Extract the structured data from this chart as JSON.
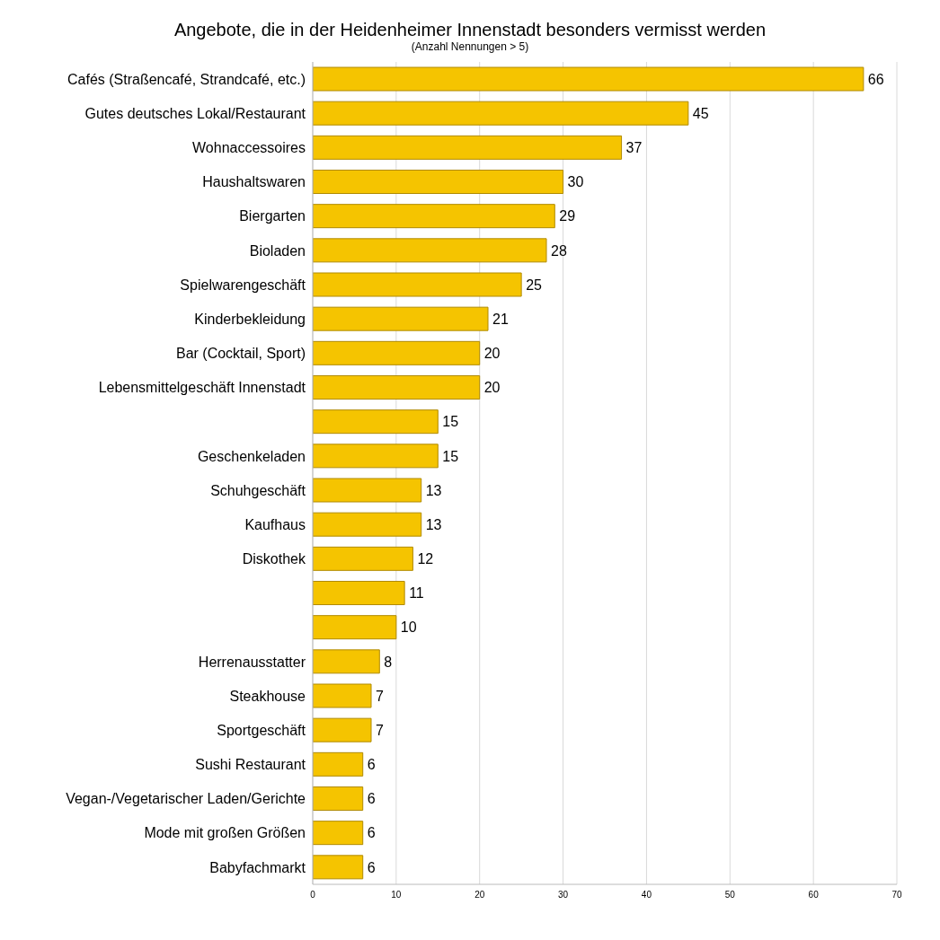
{
  "chart_data": {
    "type": "bar",
    "orientation": "horizontal",
    "title": "Angebote, die in der Heidenheimer Innenstadt besonders vermisst werden",
    "subtitle": "(Anzahl Nennungen > 5)",
    "categories": [
      "Cafés (Straßencafé, Strandcafé, etc.)",
      "Gutes deutsches Lokal/Restaurant",
      "Wohnaccessoires",
      "Haushaltswaren",
      "Biergarten",
      "Bioladen",
      "Spielwarengeschäft",
      "Kinderbekleidung",
      "Bar (Cocktail, Sport)",
      "Lebensmittelgeschäft Innenstadt",
      null,
      "Geschenkeladen",
      "Schuhgeschäft",
      "Kaufhaus",
      "Diskothek",
      null,
      null,
      "Herrenausstatter",
      "Steakhouse",
      "Sportgeschäft",
      "Sushi Restaurant",
      "Vegan-/Vegetarischer Laden/Gerichte",
      "Mode mit großen Größen",
      "Babyfachmarkt"
    ],
    "values": [
      66,
      45,
      37,
      30,
      29,
      28,
      25,
      21,
      20,
      20,
      15,
      15,
      13,
      13,
      12,
      11,
      10,
      8,
      7,
      7,
      6,
      6,
      6,
      6
    ],
    "color": "#f5c400",
    "xlim": [
      0,
      70
    ],
    "xticks": [
      0,
      10,
      20,
      30,
      40,
      50,
      60,
      70
    ],
    "grid": "x",
    "data_labels": true
  }
}
